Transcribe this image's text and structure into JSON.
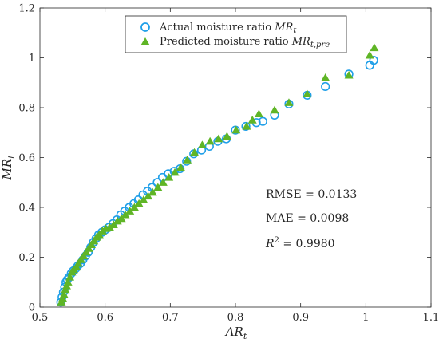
{
  "chart_data": {
    "type": "scatter",
    "xlabel_main": "AR",
    "xlabel_sub": "t",
    "ylabel_main": "MR",
    "ylabel_sub": "t",
    "xlim": [
      0.5,
      1.1
    ],
    "ylim": [
      0,
      1.2
    ],
    "x_ticks": [
      0.5,
      0.6,
      0.7,
      0.8,
      0.9,
      1.0,
      1.1
    ],
    "x_tick_labels": [
      "0.5",
      "0.6",
      "0.7",
      "0.8",
      "0.9",
      "1",
      "1.1"
    ],
    "y_ticks": [
      0,
      0.2,
      0.4,
      0.6,
      0.8,
      1.0,
      1.2
    ],
    "y_tick_labels": [
      "0",
      "0.2",
      "0.4",
      "0.6",
      "0.8",
      "1",
      "1.2"
    ],
    "grid": false,
    "legend_position": "top-center",
    "series": [
      {
        "name_prefix": "Actual moisture ratio ",
        "name_math": "MR",
        "name_sub": "t",
        "marker": "circle",
        "color": "#1f9fe8",
        "x": [
          0.532,
          0.534,
          0.536,
          0.538,
          0.54,
          0.542,
          0.545,
          0.548,
          0.551,
          0.555,
          0.558,
          0.562,
          0.566,
          0.57,
          0.574,
          0.578,
          0.582,
          0.586,
          0.59,
          0.595,
          0.6,
          0.606,
          0.612,
          0.618,
          0.624,
          0.63,
          0.637,
          0.644,
          0.651,
          0.658,
          0.665,
          0.672,
          0.68,
          0.688,
          0.697,
          0.706,
          0.715,
          0.725,
          0.736,
          0.748,
          0.76,
          0.773,
          0.786,
          0.8,
          0.816,
          0.832,
          0.842,
          0.86,
          0.882,
          0.91,
          0.938,
          0.974,
          1.006,
          1.012
        ],
        "y": [
          0.02,
          0.04,
          0.06,
          0.08,
          0.1,
          0.11,
          0.12,
          0.135,
          0.145,
          0.155,
          0.165,
          0.175,
          0.19,
          0.205,
          0.22,
          0.24,
          0.26,
          0.275,
          0.29,
          0.3,
          0.31,
          0.32,
          0.335,
          0.35,
          0.37,
          0.385,
          0.4,
          0.415,
          0.43,
          0.45,
          0.465,
          0.48,
          0.5,
          0.52,
          0.535,
          0.545,
          0.555,
          0.585,
          0.615,
          0.63,
          0.645,
          0.665,
          0.675,
          0.71,
          0.725,
          0.74,
          0.745,
          0.77,
          0.815,
          0.85,
          0.885,
          0.935,
          0.97,
          0.99
        ]
      },
      {
        "name_prefix": "Predicted moisture ratio ",
        "name_math": "MR",
        "name_sub": "t,pre",
        "marker": "triangle",
        "color": "#5fb526",
        "x": [
          0.533,
          0.535,
          0.537,
          0.539,
          0.541,
          0.543,
          0.546,
          0.549,
          0.552,
          0.556,
          0.559,
          0.563,
          0.567,
          0.571,
          0.575,
          0.579,
          0.583,
          0.587,
          0.591,
          0.596,
          0.601,
          0.607,
          0.613,
          0.619,
          0.625,
          0.631,
          0.638,
          0.645,
          0.652,
          0.659,
          0.666,
          0.673,
          0.681,
          0.689,
          0.698,
          0.707,
          0.716,
          0.726,
          0.737,
          0.749,
          0.761,
          0.774,
          0.787,
          0.801,
          0.817,
          0.826,
          0.836,
          0.86,
          0.882,
          0.91,
          0.938,
          0.974,
          1.006,
          1.013
        ],
        "y": [
          0.02,
          0.035,
          0.05,
          0.07,
          0.085,
          0.1,
          0.12,
          0.14,
          0.15,
          0.16,
          0.175,
          0.19,
          0.205,
          0.22,
          0.235,
          0.25,
          0.265,
          0.28,
          0.29,
          0.305,
          0.315,
          0.32,
          0.33,
          0.345,
          0.355,
          0.37,
          0.385,
          0.4,
          0.415,
          0.43,
          0.445,
          0.46,
          0.48,
          0.5,
          0.52,
          0.54,
          0.56,
          0.59,
          0.62,
          0.65,
          0.665,
          0.675,
          0.685,
          0.71,
          0.725,
          0.75,
          0.775,
          0.79,
          0.82,
          0.855,
          0.92,
          0.93,
          1.01,
          1.04
        ]
      }
    ],
    "annotations": {
      "rmse": "RMSE = 0.0133",
      "mae": "MAE = 0.0098",
      "r2_prefix": "R",
      "r2_sup": "2",
      "r2_value": " = 0.9980"
    }
  }
}
